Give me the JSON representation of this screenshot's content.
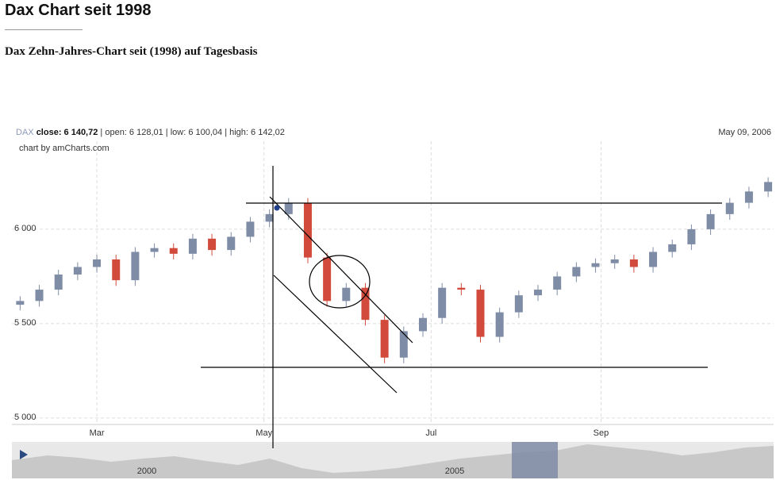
{
  "header": {
    "title": "Dax Chart seit 1998",
    "subtitle": "Dax Zehn-Jahres-Chart seit (1998) auf Tagesbasis"
  },
  "chart_data": {
    "type": "candlestick",
    "symbol": "DAX",
    "info_close": "close: 6 140,72",
    "info_rest": "| open: 6 128,01 | low: 6 100,04 | high: 6 142,02",
    "date_label": "May 09, 2006",
    "credit": "chart by amCharts.com",
    "x": [
      "2006-02-01",
      "2006-02-08",
      "2006-02-15",
      "2006-02-22",
      "2006-03-01",
      "2006-03-08",
      "2006-03-15",
      "2006-03-22",
      "2006-03-29",
      "2006-04-05",
      "2006-04-12",
      "2006-04-19",
      "2006-04-26",
      "2006-05-03",
      "2006-05-10",
      "2006-05-17",
      "2006-05-24",
      "2006-05-31",
      "2006-06-07",
      "2006-06-14",
      "2006-06-21",
      "2006-06-28",
      "2006-07-05",
      "2006-07-12",
      "2006-07-19",
      "2006-07-26",
      "2006-08-02",
      "2006-08-09",
      "2006-08-16",
      "2006-08-23",
      "2006-08-30",
      "2006-09-06",
      "2006-09-13",
      "2006-09-20",
      "2006-09-27",
      "2006-10-04",
      "2006-10-11",
      "2006-10-18",
      "2006-10-25",
      "2006-11-01"
    ],
    "open": [
      5600,
      5620,
      5680,
      5760,
      5800,
      5840,
      5730,
      5880,
      5900,
      5870,
      5950,
      5890,
      5960,
      6040,
      6080,
      6140,
      5850,
      5620,
      5690,
      5520,
      5320,
      5460,
      5530,
      5690,
      5680,
      5430,
      5560,
      5650,
      5680,
      5750,
      5800,
      5820,
      5840,
      5800,
      5880,
      5920,
      6000,
      6080,
      6140,
      6200
    ],
    "high": [
      5645,
      5705,
      5785,
      5825,
      5865,
      5865,
      5905,
      5925,
      5925,
      5975,
      5975,
      5985,
      6065,
      6105,
      6165,
      6165,
      5875,
      5715,
      5715,
      5545,
      5485,
      5555,
      5715,
      5715,
      5705,
      5585,
      5675,
      5705,
      5775,
      5825,
      5845,
      5865,
      5865,
      5905,
      5945,
      6025,
      6105,
      6165,
      6225,
      6275
    ],
    "low": [
      5570,
      5590,
      5650,
      5730,
      5770,
      5700,
      5700,
      5850,
      5840,
      5840,
      5860,
      5860,
      5930,
      6010,
      6050,
      5820,
      5590,
      5590,
      5490,
      5290,
      5290,
      5430,
      5500,
      5650,
      5400,
      5400,
      5530,
      5620,
      5650,
      5720,
      5770,
      5790,
      5770,
      5770,
      5850,
      5890,
      5970,
      6050,
      6110,
      6170
    ],
    "close": [
      5620,
      5680,
      5760,
      5800,
      5840,
      5730,
      5880,
      5900,
      5870,
      5950,
      5890,
      5960,
      6040,
      6080,
      6140,
      5850,
      5620,
      5690,
      5520,
      5320,
      5460,
      5530,
      5690,
      5680,
      5430,
      5560,
      5650,
      5680,
      5750,
      5800,
      5820,
      5840,
      5800,
      5880,
      5920,
      6000,
      6080,
      6140,
      6200,
      6250
    ],
    "up_color": "#7f8ca6",
    "down_color": "#d24a3c",
    "xlim": [
      "2006-01-29",
      "2006-11-03"
    ],
    "xticks": [
      {
        "value": "2006-03-01",
        "label": "Mar"
      },
      {
        "value": "2006-05-01",
        "label": "May"
      },
      {
        "value": "2006-07-01",
        "label": "Jul"
      },
      {
        "value": "2006-09-01",
        "label": "Sep"
      }
    ],
    "ylim": [
      4966,
      6466
    ],
    "yticks": [
      {
        "value": 5000,
        "label": "5 000"
      },
      {
        "value": 5500,
        "label": "5 500"
      },
      {
        "value": 6000,
        "label": "6 000"
      }
    ],
    "grid": true,
    "navigator_labels": [
      "2000",
      "2005"
    ]
  }
}
